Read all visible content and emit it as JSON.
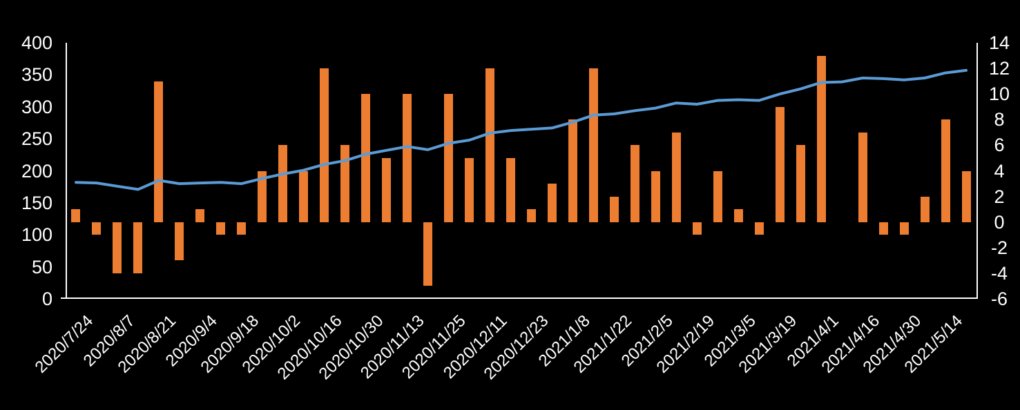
{
  "chart_data": {
    "type": "combo",
    "title": "",
    "background": "#000000",
    "text_color": "#FFFFFF",
    "axis_line_color": "#FFFFFF",
    "grid": false,
    "legend_position": "none",
    "n_points": 44,
    "x_tick_every": 2,
    "x_tick_labels": [
      "2020/7/24",
      "2020/8/7",
      "2020/8/21",
      "2020/9/4",
      "2020/9/18",
      "2020/10/2",
      "2020/10/16",
      "2020/10/30",
      "2020/11/13",
      "2020/11/25",
      "2020/12/11",
      "2020/12/23",
      "2021/1/8",
      "2021/1/22",
      "2021/2/5",
      "2021/2/19",
      "2021/3/5",
      "2021/3/19",
      "2021/4/1",
      "2021/4/16",
      "2021/4/30",
      "2021/5/14"
    ],
    "left_axis": {
      "min": 0,
      "max": 400,
      "ticks": [
        "400",
        "350",
        "300",
        "250",
        "200",
        "150",
        "100",
        "50",
        "0"
      ]
    },
    "right_axis": {
      "min": -6,
      "max": 14,
      "ticks": [
        "14",
        "12",
        "10",
        "8",
        "6",
        "4",
        "2",
        "0",
        "-2",
        "-4",
        "-6"
      ]
    },
    "series": [
      {
        "id": "bar-series",
        "type": "bar",
        "axis": "right",
        "color": "#ED7D31",
        "values": [
          1,
          -1,
          -4,
          -4,
          11,
          -3,
          1,
          -1,
          -1,
          4,
          6,
          4,
          12,
          6,
          10,
          5,
          10,
          -5,
          10,
          5,
          12,
          5,
          1,
          3,
          8,
          12,
          2,
          6,
          4,
          7,
          -1,
          4,
          1,
          -1,
          9,
          6,
          13,
          0,
          7,
          -1,
          -1,
          2,
          8,
          4
        ]
      },
      {
        "id": "line-series",
        "type": "line",
        "axis": "left",
        "color": "#5B9BD5",
        "stroke_width": 4,
        "values": [
          182,
          181,
          176,
          171,
          185,
          180,
          181,
          182,
          180,
          188,
          195,
          201,
          210,
          216,
          226,
          232,
          238,
          233,
          243,
          248,
          259,
          263,
          265,
          267,
          276,
          287,
          289,
          294,
          298,
          306,
          304,
          310,
          311,
          310,
          320,
          328,
          338,
          339,
          345,
          344,
          342,
          345,
          353,
          357
        ]
      }
    ]
  }
}
